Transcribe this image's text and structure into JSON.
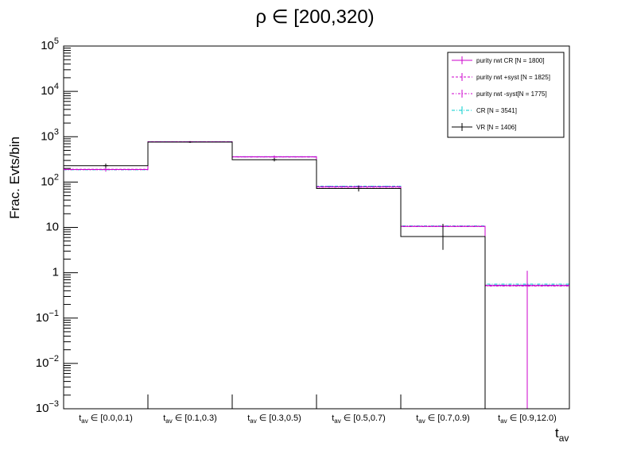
{
  "chart_data": {
    "type": "histogram",
    "title": "ρ ∈ [200,320)",
    "xlabel": {
      "base": "t",
      "sub": "av"
    },
    "ylabel": "Frac. Evts/bin",
    "y_scale": "log",
    "ylim": [
      0.001,
      100000
    ],
    "y_ticks": [
      {
        "value": 0.001,
        "base": "10",
        "exp": "−3"
      },
      {
        "value": 0.01,
        "base": "10",
        "exp": "−2"
      },
      {
        "value": 0.1,
        "base": "10",
        "exp": "−1"
      },
      {
        "value": 1,
        "base": "1",
        "exp": ""
      },
      {
        "value": 10,
        "base": "10",
        "exp": ""
      },
      {
        "value": 100,
        "base": "10",
        "exp": "2"
      },
      {
        "value": 1000,
        "base": "10",
        "exp": "3"
      },
      {
        "value": 10000,
        "base": "10",
        "exp": "4"
      },
      {
        "value": 100000,
        "base": "10",
        "exp": "5"
      }
    ],
    "categories": [
      {
        "sub": "av",
        "range": " ∈ [0.0,0.1)"
      },
      {
        "sub": "av",
        "range": " ∈ [0.1,0.3)"
      },
      {
        "sub": "av",
        "range": " ∈ [0.3,0.5)"
      },
      {
        "sub": "av",
        "range": " ∈ [0.5,0.7)"
      },
      {
        "sub": "av",
        "range": " ∈ [0.7,0.9)"
      },
      {
        "sub": "av",
        "range": " ∈ [0.9,12.0)"
      }
    ],
    "series": [
      {
        "name": "purity rwt CR [N = 1800]",
        "color": "#cc00cc",
        "dash": "",
        "values": [
          190,
          770,
          360,
          78,
          10.5,
          0.52
        ],
        "errors": [
          [
            170,
            210
          ],
          [
            740,
            800
          ],
          [
            335,
            385
          ],
          [
            72,
            85
          ],
          [
            9,
            12
          ],
          [
            0.001,
            1.1
          ]
        ]
      },
      {
        "name": "purity rwt +syst [N = 1825]",
        "color": "#cc00cc",
        "dash": "3,2",
        "values": [
          192,
          775,
          362,
          79,
          10.6,
          0.53
        ],
        "errors": null
      },
      {
        "name": "purity rwt -syst[N = 1775]",
        "color": "#cc00cc",
        "dash": "3,2,1,2",
        "values": [
          188,
          765,
          358,
          77,
          10.4,
          0.51
        ],
        "errors": null
      },
      {
        "name": "CR [N = 3541]",
        "color": "#00cccc",
        "dash": "4,2,1,2",
        "values": [
          187,
          772,
          363,
          81,
          10.8,
          0.56
        ],
        "errors": null
      },
      {
        "name": "VR [N = 1406]",
        "color": "#000000",
        "dash": "",
        "values": [
          230,
          760,
          310,
          72,
          6.3,
          0.0
        ],
        "errors": [
          [
            205,
            255
          ],
          [
            730,
            790
          ],
          [
            285,
            340
          ],
          [
            62,
            82
          ],
          [
            3.2,
            12
          ],
          null
        ]
      },
      {
        "name": "",
        "color": "#3366ff",
        "dash": "4,2",
        "values": [
          190,
          770,
          360,
          80,
          10.6,
          0.53
        ],
        "errors": [
          [
            170,
            210
          ],
          [
            740,
            800
          ],
          [
            335,
            385
          ],
          [
            72,
            85
          ],
          [
            9,
            12
          ],
          [
            0.001,
            1.1
          ]
        ]
      }
    ],
    "legend_position": "top-right",
    "grid": false
  }
}
